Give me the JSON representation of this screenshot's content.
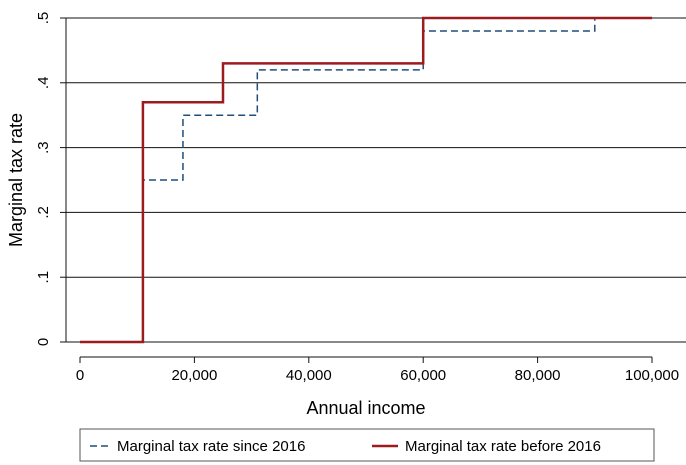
{
  "chart_data": {
    "type": "line",
    "title": "",
    "xlabel": "Annual income",
    "ylabel": "Marginal tax rate",
    "xlim": [
      0,
      100000
    ],
    "ylim": [
      0,
      0.5
    ],
    "x_ticks": [
      0,
      20000,
      40000,
      60000,
      80000,
      100000
    ],
    "x_tick_labels": [
      "0",
      "20,000",
      "40,000",
      "60,000",
      "80,000",
      "100,000"
    ],
    "y_ticks": [
      0,
      0.1,
      0.2,
      0.3,
      0.4,
      0.5
    ],
    "y_tick_labels": [
      "0",
      ".1",
      ".2",
      ".3",
      ".4",
      ".5"
    ],
    "grid": "horizontal",
    "legend_position": "bottom",
    "step": true,
    "series": [
      {
        "name": "Marginal tax rate since 2016",
        "style": "dashed",
        "color": "#1f4e79",
        "x": [
          0,
          11000,
          18000,
          31000,
          60000,
          90000,
          100000
        ],
        "y": [
          0,
          0.25,
          0.35,
          0.42,
          0.48,
          0.5,
          0.5
        ]
      },
      {
        "name": "Marginal tax rate before 2016",
        "style": "solid",
        "color": "#9b1b1f",
        "x": [
          0,
          11000,
          25000,
          60000,
          100000
        ],
        "y": [
          0,
          0.37,
          0.43,
          0.5,
          0.5
        ]
      }
    ]
  }
}
